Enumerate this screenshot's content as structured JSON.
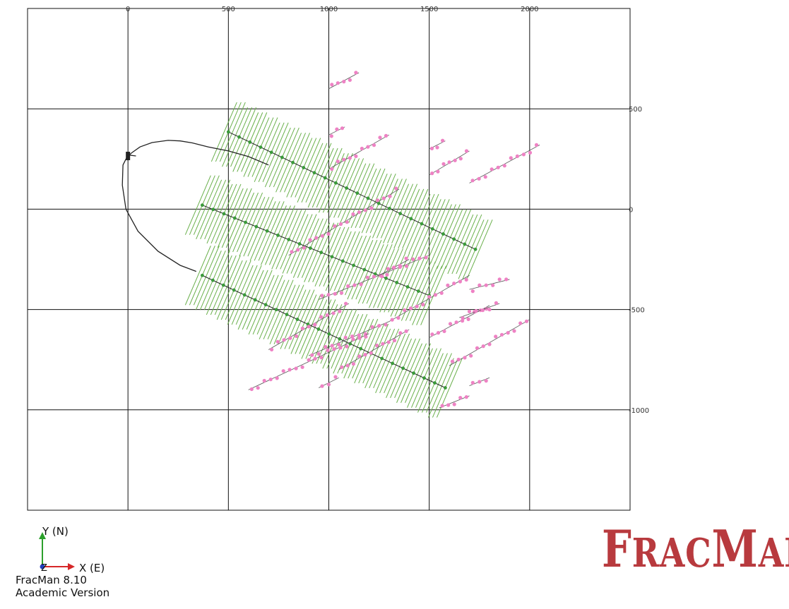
{
  "app": {
    "version_line1": "FracMan 8.10",
    "version_line2": "Academic Version"
  },
  "logo": {
    "first_big": "F",
    "first_small": "RAC",
    "second_big": "M",
    "second_small": "AN",
    "color": "#b83a3e"
  },
  "axis_triad": {
    "y_label": "Y (N)",
    "x_label": "X (E)",
    "z_label": "Z"
  },
  "colors": {
    "well": "#222222",
    "stage": "#3a9a3a",
    "frac": "#6ab04c",
    "event": "#ee82c4",
    "grid": "#111111"
  },
  "chart_data": {
    "type": "scatter",
    "title": "",
    "xlabel": "",
    "ylabel": "",
    "x_ticks": [
      0,
      500,
      1000,
      1500,
      2000
    ],
    "y_ticks": [
      500,
      0,
      -500,
      -1000
    ],
    "xlim": [
      -500,
      2500
    ],
    "ylim": [
      -1500,
      1000
    ],
    "grid": true,
    "well_trajectory": [
      [
        1,
        265
      ],
      [
        20,
        282
      ],
      [
        60,
        310
      ],
      [
        120,
        332
      ],
      [
        200,
        343
      ],
      [
        260,
        340
      ],
      [
        320,
        330
      ],
      [
        400,
        310
      ],
      [
        500,
        290
      ],
      [
        600,
        262
      ],
      [
        700,
        220
      ]
    ],
    "well_return": [
      [
        40,
        265
      ],
      [
        0,
        270
      ],
      [
        -25,
        220
      ],
      [
        -28,
        120
      ],
      [
        -10,
        0
      ],
      [
        50,
        -110
      ],
      [
        150,
        -210
      ],
      [
        260,
        -280
      ],
      [
        340,
        -310
      ]
    ],
    "laterals": [
      {
        "name": "",
        "start": [
          500,
          385
        ],
        "end": [
          1730,
          -200
        ],
        "n_stages": 24
      },
      {
        "name": "",
        "start": [
          370,
          20
        ],
        "end": [
          1500,
          -430
        ],
        "n_stages": 22
      },
      {
        "name": "",
        "start": [
          370,
          -330
        ],
        "end": [
          1580,
          -890
        ],
        "n_stages": 24
      }
    ],
    "event_lines": [
      {
        "start": [
          1000,
          600
        ],
        "end": [
          1150,
          680
        ]
      },
      {
        "start": [
          1000,
          370
        ],
        "end": [
          1080,
          410
        ]
      },
      {
        "start": [
          1000,
          200
        ],
        "end": [
          1300,
          370
        ]
      },
      {
        "start": [
          1500,
          300
        ],
        "end": [
          1580,
          340
        ]
      },
      {
        "start": [
          1500,
          170
        ],
        "end": [
          1700,
          290
        ]
      },
      {
        "start": [
          1700,
          130
        ],
        "end": [
          2050,
          320
        ]
      },
      {
        "start": [
          800,
          -230
        ],
        "end": [
          1350,
          100
        ]
      },
      {
        "start": [
          950,
          -450
        ],
        "end": [
          1500,
          -230
        ]
      },
      {
        "start": [
          1250,
          -330
        ],
        "end": [
          1400,
          -250
        ]
      },
      {
        "start": [
          700,
          -700
        ],
        "end": [
          1100,
          -470
        ]
      },
      {
        "start": [
          900,
          -730
        ],
        "end": [
          1300,
          -560
        ]
      },
      {
        "start": [
          1300,
          -560
        ],
        "end": [
          1700,
          -330
        ]
      },
      {
        "start": [
          1050,
          -800
        ],
        "end": [
          1400,
          -600
        ]
      },
      {
        "start": [
          1500,
          -640
        ],
        "end": [
          1800,
          -480
        ]
      },
      {
        "start": [
          1600,
          -780
        ],
        "end": [
          2000,
          -550
        ]
      },
      {
        "start": [
          1700,
          -400
        ],
        "end": [
          1900,
          -350
        ]
      },
      {
        "start": [
          1650,
          -540
        ],
        "end": [
          1850,
          -470
        ]
      },
      {
        "start": [
          600,
          -900
        ],
        "end": [
          1200,
          -620
        ]
      },
      {
        "start": [
          950,
          -890
        ],
        "end": [
          1050,
          -840
        ]
      },
      {
        "start": [
          1550,
          -990
        ],
        "end": [
          1700,
          -930
        ]
      },
      {
        "start": [
          1700,
          -880
        ],
        "end": [
          1800,
          -840
        ]
      }
    ]
  }
}
